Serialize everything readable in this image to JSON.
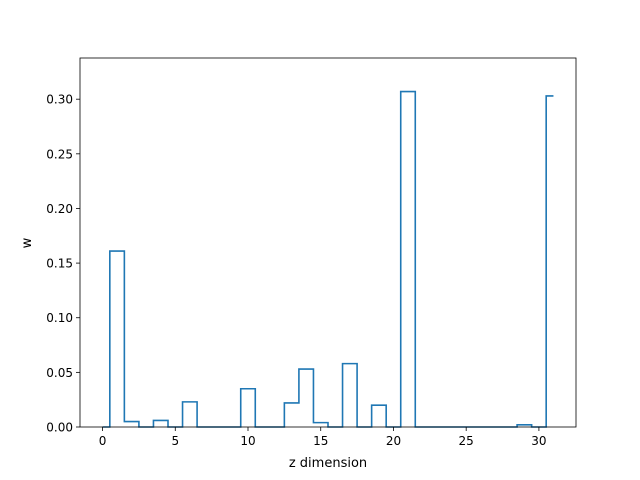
{
  "chart_data": {
    "type": "line",
    "drawstyle": "steps-mid",
    "title": "",
    "xlabel": "z dimension",
    "ylabel": "w",
    "xlim": [
      -1.55,
      32.55
    ],
    "ylim": [
      0.0,
      0.3377
    ],
    "xticks": [
      0,
      5,
      10,
      15,
      20,
      25,
      30
    ],
    "xtick_labels": [
      "0",
      "5",
      "10",
      "15",
      "20",
      "25",
      "30"
    ],
    "yticks": [
      0.0,
      0.05,
      0.1,
      0.15,
      0.2,
      0.25,
      0.3
    ],
    "ytick_labels": [
      "0.00",
      "0.05",
      "0.10",
      "0.15",
      "0.20",
      "0.25",
      "0.30"
    ],
    "grid": false,
    "color": "#1f77b4",
    "x": [
      0,
      1,
      2,
      3,
      4,
      5,
      6,
      7,
      8,
      9,
      10,
      11,
      12,
      13,
      14,
      15,
      16,
      17,
      18,
      19,
      20,
      21,
      22,
      23,
      24,
      25,
      26,
      27,
      28,
      29,
      30,
      31
    ],
    "values": [
      0.0,
      0.161,
      0.005,
      0.0,
      0.006,
      0.0,
      0.023,
      0.0,
      0.0,
      0.0,
      0.035,
      0.0,
      0.0,
      0.022,
      0.053,
      0.004,
      0.0,
      0.058,
      0.0,
      0.02,
      0.0,
      0.307,
      0.0,
      0.0,
      0.0,
      0.0,
      0.0,
      0.0,
      0.0,
      0.002,
      0.0,
      0.303
    ]
  }
}
